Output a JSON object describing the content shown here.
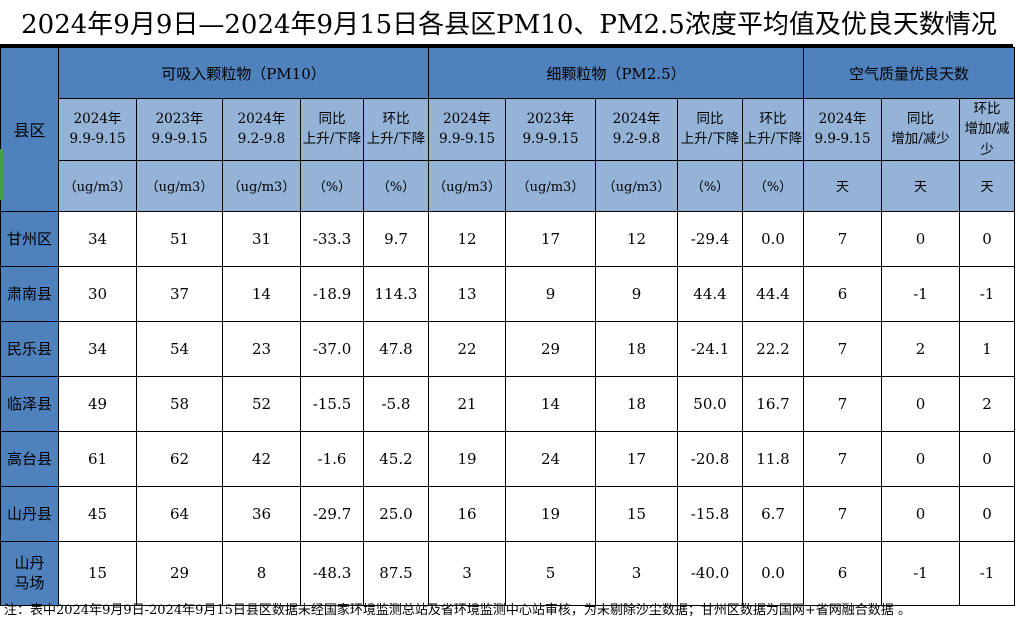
{
  "title": "2024年9月9日—2024年9月15日各县区PM10、PM2.5浓度平均值及优良天数情况",
  "colors": {
    "header_blue": "#4f81bd",
    "subheader_blue": "#95b3d7",
    "border_black": "#000000",
    "accent_green": "#44a049",
    "cell_white": "#ffffff"
  },
  "table": {
    "corner_label": "县区",
    "groups": [
      {
        "label": "可吸入颗粒物（PM10）",
        "span": 5
      },
      {
        "label": "细颗粒物（PM2.5）",
        "span": 5
      },
      {
        "label": "空气质量优良天数",
        "span": 3
      }
    ],
    "period_headers": [
      {
        "line1": "2024年",
        "line2": "9.9-9.15"
      },
      {
        "line1": "2023年",
        "line2": "9.9-9.15"
      },
      {
        "line1": "2024年",
        "line2": "9.2-9.8"
      },
      {
        "line1": "同比",
        "line2": "上升/下降"
      },
      {
        "line1": "环比",
        "line2": "上升/下降"
      },
      {
        "line1": "2024年",
        "line2": "9.9-9.15"
      },
      {
        "line1": "2023年",
        "line2": "9.9-9.15"
      },
      {
        "line1": "2024年",
        "line2": "9.2-9.8"
      },
      {
        "line1": "同比",
        "line2": "上升/下降"
      },
      {
        "line1": "环比",
        "line2": "上升/下降"
      },
      {
        "line1": "2024年",
        "line2": "9.9-9.15"
      },
      {
        "line1": "同比",
        "line2": "增加/减少"
      },
      {
        "line1": "环比",
        "line2": "增加/减少"
      }
    ],
    "unit_headers": [
      "（ug/m3）",
      "（ug/m3）",
      "（ug/m3）",
      "（%）",
      "（%）",
      "（ug/m3）",
      "（ug/m3）",
      "（ug/m3）",
      "（%）",
      "（%）",
      "天",
      "天",
      "天"
    ],
    "rows": [
      {
        "name": "甘州区",
        "values": [
          "34",
          "51",
          "31",
          "-33.3",
          "9.7",
          "12",
          "17",
          "12",
          "-29.4",
          "0.0",
          "7",
          "0",
          "0"
        ]
      },
      {
        "name": "肃南县",
        "values": [
          "30",
          "37",
          "14",
          "-18.9",
          "114.3",
          "13",
          "9",
          "9",
          "44.4",
          "44.4",
          "6",
          "-1",
          "-1"
        ]
      },
      {
        "name": "民乐县",
        "values": [
          "34",
          "54",
          "23",
          "-37.0",
          "47.8",
          "22",
          "29",
          "18",
          "-24.1",
          "22.2",
          "7",
          "2",
          "1"
        ]
      },
      {
        "name": "临泽县",
        "values": [
          "49",
          "58",
          "52",
          "-15.5",
          "-5.8",
          "21",
          "14",
          "18",
          "50.0",
          "16.7",
          "7",
          "0",
          "2"
        ]
      },
      {
        "name": "高台县",
        "values": [
          "61",
          "62",
          "42",
          "-1.6",
          "45.2",
          "19",
          "24",
          "17",
          "-20.8",
          "11.8",
          "7",
          "0",
          "0"
        ]
      },
      {
        "name": "山丹县",
        "values": [
          "45",
          "64",
          "36",
          "-29.7",
          "25.0",
          "16",
          "19",
          "15",
          "-15.8",
          "6.7",
          "7",
          "0",
          "0"
        ]
      },
      {
        "name": "山丹\n马场",
        "values": [
          "15",
          "29",
          "8",
          "-48.3",
          "87.5",
          "3",
          "5",
          "3",
          "-40.0",
          "0.0",
          "6",
          "-1",
          "-1"
        ]
      }
    ]
  },
  "footnote": "注：表中2024年9月9日-2024年9月15日县区数据未经国家环境监测总站及省环境监测中心站审核，为未剔除沙尘数据；甘州区数据为国网+省网融合数据 。"
}
